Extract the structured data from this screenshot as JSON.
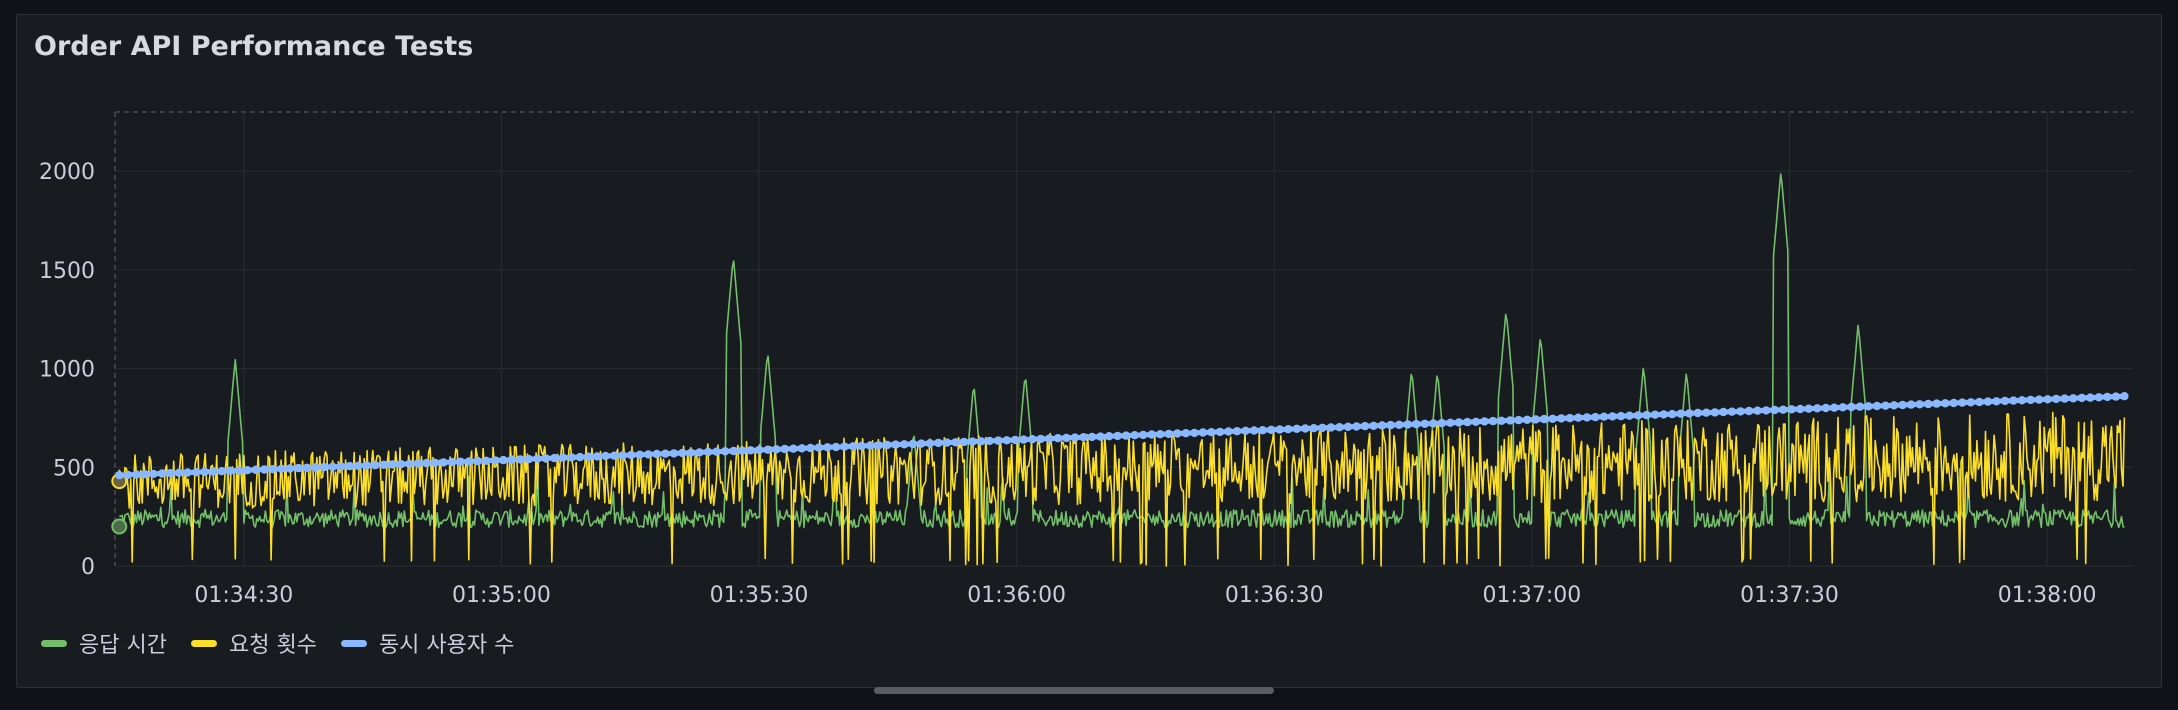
{
  "panel": {
    "title": "Order API Performance Tests"
  },
  "chart_data": {
    "type": "line",
    "x_label_format": "HH:MM:SS",
    "x_range": [
      "01:34:15",
      "01:38:10"
    ],
    "x_ticks": [
      "01:34:30",
      "01:35:00",
      "01:35:30",
      "01:36:00",
      "01:36:30",
      "01:37:00",
      "01:37:30",
      "01:38:00"
    ],
    "ylim": [
      0,
      2300
    ],
    "y_ticks": [
      0,
      500,
      1000,
      1500,
      2000
    ],
    "grid": true,
    "legend_placement": "bottom-left",
    "series": [
      {
        "name": "응답 시간",
        "color": "#73bf69",
        "style": "line",
        "baseline": 240,
        "noise": 45,
        "spikes": [
          {
            "t": "01:34:23",
            "value": 200
          },
          {
            "t": "01:34:29",
            "value": 1050
          },
          {
            "t": "01:35:08",
            "value": 330
          },
          {
            "t": "01:35:27",
            "value": 1570
          },
          {
            "t": "01:35:31",
            "value": 1090
          },
          {
            "t": "01:35:48",
            "value": 690
          },
          {
            "t": "01:35:55",
            "value": 930
          },
          {
            "t": "01:36:01",
            "value": 980
          },
          {
            "t": "01:36:46",
            "value": 1000
          },
          {
            "t": "01:36:49",
            "value": 990
          },
          {
            "t": "01:36:57",
            "value": 1300
          },
          {
            "t": "01:37:01",
            "value": 1170
          },
          {
            "t": "01:37:13",
            "value": 1020
          },
          {
            "t": "01:37:18",
            "value": 990
          },
          {
            "t": "01:37:29",
            "value": 2000
          },
          {
            "t": "01:37:38",
            "value": 1230
          }
        ]
      },
      {
        "name": "요청 횟수",
        "color": "#fade2a",
        "style": "line",
        "start": 430,
        "end": 560,
        "amplitude": 230,
        "dips_to": 0
      },
      {
        "name": "동시 사용자 수",
        "color": "#8ab8ff",
        "style": "line+points",
        "start": 460,
        "end": 860
      }
    ]
  }
}
